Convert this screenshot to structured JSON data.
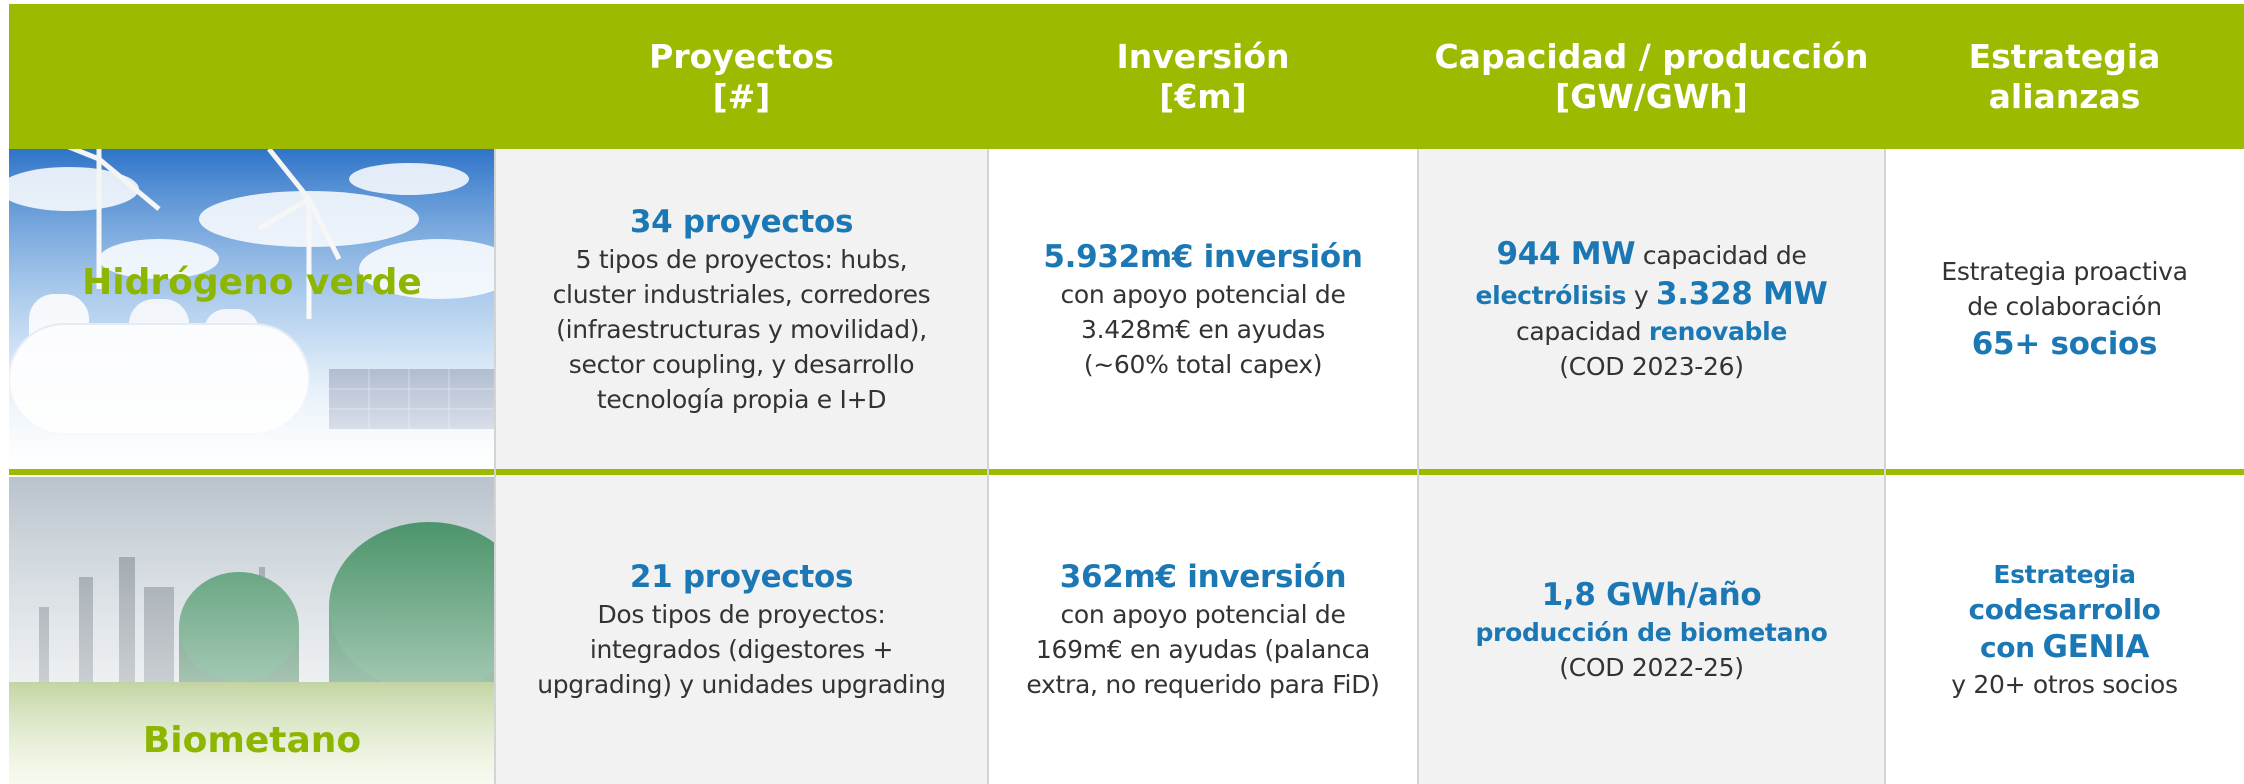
{
  "header": {
    "columns": [
      [
        "Proyectos",
        "[#]"
      ],
      [
        "Inversión",
        "[€m]"
      ],
      [
        "Capacidad / producción",
        "[GW/GWh]"
      ],
      [
        "Estrategia",
        "alianzas"
      ]
    ]
  },
  "table": {
    "rows": [
      {
        "label": "Hidrógeno verde",
        "cells": [
          [
            [
              "34 proyectos"
            ],
            [
              "5 tipos de proyectos: hubs,"
            ],
            [
              "cluster industriales, corredores"
            ],
            [
              "(infraestructuras y movilidad),"
            ],
            [
              "sector coupling, y desarrollo"
            ],
            [
              "tecnología propia e I+D"
            ]
          ],
          [
            [
              "5.932m€ inversión"
            ],
            [
              "con apoyo potencial de"
            ],
            [
              "3.428m€ en ayudas"
            ],
            [
              "(~60% total capex)"
            ]
          ],
          [
            [
              "944 MW",
              "capacidad de"
            ],
            [
              "electrólisis",
              "y",
              "3.328 MW"
            ],
            [
              "capacidad",
              "renovable"
            ],
            [
              "(COD 2023-26)"
            ]
          ],
          [
            [
              "Estrategia proactiva"
            ],
            [
              "de colaboración"
            ],
            [
              "65+ socios"
            ]
          ]
        ]
      },
      {
        "label": "Biometano",
        "cells": [
          [
            [
              "21 proyectos"
            ],
            [
              "Dos tipos de proyectos:"
            ],
            [
              "integrados (digestores +"
            ],
            [
              "upgrading) y unidades upgrading"
            ]
          ],
          [
            [
              "362m€ inversión"
            ],
            [
              "con apoyo potencial de"
            ],
            [
              "169m€ en ayudas (palanca"
            ],
            [
              "extra, no requerido para FiD)"
            ]
          ],
          [
            [
              "1,8 GWh/año"
            ],
            [
              "producción de biometano"
            ],
            [
              "(COD 2022-25)"
            ]
          ],
          [
            [
              "Estrategia"
            ],
            [
              "codesarrollo"
            ],
            [
              "con",
              "GENIA"
            ],
            [
              "y 20+ otros socios"
            ]
          ]
        ]
      }
    ]
  }
}
